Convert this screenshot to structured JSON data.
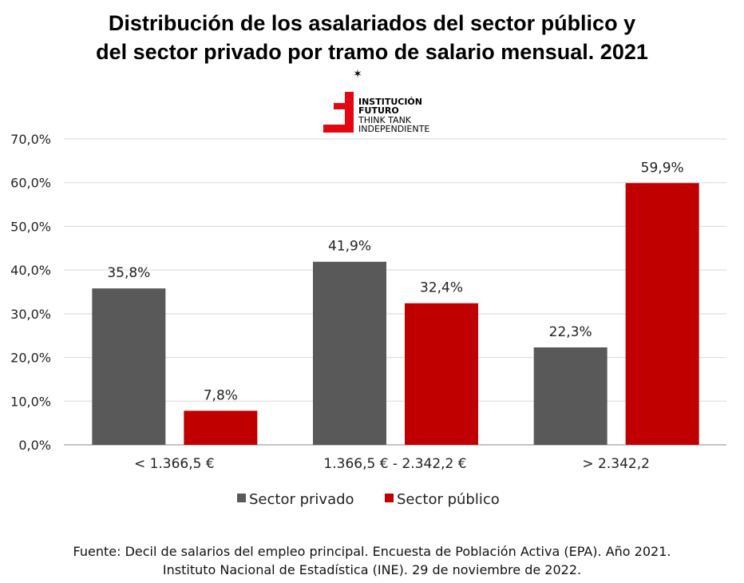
{
  "chart_data": {
    "type": "bar",
    "title_lines": [
      "Distribución de los asalariados del sector público y",
      "del sector privado por tramo de salario mensual. 2021"
    ],
    "categories": [
      "< 1.366,5 €",
      "1.366,5 € - 2.342,2 €",
      "> 2.342,2"
    ],
    "series": [
      {
        "name": "Sector privado",
        "values": [
          35.8,
          41.9,
          22.3
        ],
        "labels": [
          "35,8%",
          "41,9%",
          "22,3%"
        ],
        "color": "#595959"
      },
      {
        "name": "Sector público",
        "values": [
          7.8,
          32.4,
          59.9
        ],
        "labels": [
          "7,8%",
          "32,4%",
          "59,9%"
        ],
        "color": "#c00000"
      }
    ],
    "ylim": [
      0,
      70
    ],
    "yticks": [
      0,
      10,
      20,
      30,
      40,
      50,
      60,
      70
    ],
    "ytick_labels": [
      "0,0%",
      "10,0%",
      "20,0%",
      "30,0%",
      "40,0%",
      "50,0%",
      "60,0%",
      "70,0%"
    ],
    "grid": true,
    "legend_placement": "bottom"
  },
  "logo": {
    "lines": [
      "INSTITUCIÓN",
      "FUTURO",
      "THINK TANK",
      "INDEPENDIENTE"
    ],
    "color": "#e30613"
  },
  "source": [
    "Fuente: Decil de salarios del empleo principal. Encuesta de Población Activa (EPA). Año 2021.",
    "Instituto Nacional de Estadística (INE). 29 de noviembre de 2022."
  ]
}
